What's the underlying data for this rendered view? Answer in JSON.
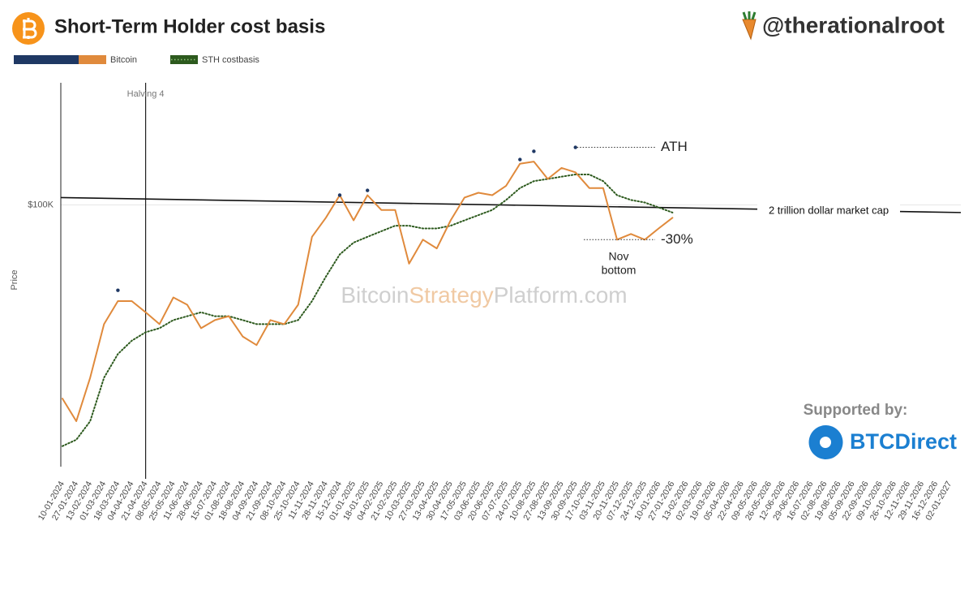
{
  "header": {
    "title": "Short-Term Holder cost basis",
    "handle": "@therationalroot"
  },
  "chart_data": {
    "type": "line",
    "y_label": "Price",
    "x": [
      "10-01-2024",
      "27-01-2024",
      "13-02-2024",
      "01-03-2024",
      "18-03-2024",
      "04-04-2024",
      "21-04-2024",
      "08-05-2024",
      "25-05-2024",
      "11-06-2024",
      "28-06-2024",
      "15-07-2024",
      "01-08-2024",
      "18-08-2024",
      "04-09-2024",
      "21-09-2024",
      "08-10-2024",
      "25-10-2024",
      "11-11-2024",
      "28-11-2024",
      "15-12-2024",
      "01-01-2025",
      "18-01-2025",
      "04-02-2025",
      "21-02-2025",
      "10-03-2025",
      "27-03-2025",
      "13-04-2025",
      "30-04-2025",
      "17-05-2025",
      "03-06-2025",
      "20-06-2025",
      "07-07-2025",
      "24-07-2025",
      "10-08-2025",
      "27-08-2025",
      "13-09-2025",
      "30-09-2025",
      "17-10-2025",
      "03-11-2025",
      "20-11-2025",
      "07-12-2025",
      "24-12-2025",
      "10-01-2026",
      "27-01-2026",
      "13-02-2026",
      "02-03-2026",
      "19-03-2026",
      "05-04-2026",
      "22-04-2026",
      "09-05-2026",
      "26-05-2026",
      "12-06-2026",
      "29-06-2026",
      "16-07-2026",
      "02-08-2026",
      "19-08-2026",
      "05-09-2026",
      "22-09-2026",
      "09-10-2026",
      "26-10-2026",
      "12-11-2026",
      "29-11-2026",
      "16-12-2026",
      "02-01-2027"
    ],
    "series": [
      {
        "name": "ATH's",
        "color": "#1f3864",
        "style": "points",
        "values": [
          null,
          null,
          null,
          null,
          71000,
          null,
          null,
          null,
          null,
          null,
          null,
          null,
          null,
          null,
          null,
          null,
          null,
          null,
          null,
          null,
          104000,
          null,
          106000,
          null,
          null,
          null,
          null,
          null,
          null,
          null,
          null,
          null,
          null,
          120000,
          124000,
          null,
          null,
          126000,
          null,
          null,
          null,
          null,
          null,
          null,
          null,
          null,
          null,
          null,
          null,
          null,
          null,
          null,
          null,
          null,
          null,
          null,
          null,
          null,
          null,
          null,
          null,
          null,
          null,
          null,
          null
        ]
      },
      {
        "name": "Bitcoin",
        "color": "#e08a3c",
        "style": "solid",
        "values": [
          46000,
          42000,
          50000,
          62000,
          68000,
          68000,
          65000,
          62000,
          69000,
          67000,
          61000,
          63000,
          64000,
          59000,
          57000,
          63000,
          62000,
          67000,
          88000,
          95000,
          104000,
          94000,
          104000,
          98000,
          98000,
          79000,
          87000,
          84000,
          94000,
          103000,
          105000,
          104000,
          108000,
          118000,
          119000,
          111000,
          116000,
          114000,
          107000,
          107000,
          87000,
          89000,
          87000,
          91000,
          95000,
          null,
          null,
          null,
          null,
          null,
          null,
          null,
          null,
          null,
          null,
          null,
          null,
          null,
          null,
          null,
          null,
          null,
          null,
          null,
          null
        ]
      },
      {
        "name": "STH costbasis",
        "color": "#2d5a1e",
        "style": "dotted",
        "values": [
          38000,
          39000,
          42000,
          50000,
          55000,
          58000,
          60000,
          61000,
          63000,
          64000,
          65000,
          64000,
          64000,
          63000,
          62000,
          62000,
          62000,
          63000,
          68000,
          75000,
          82000,
          86000,
          88000,
          90000,
          92000,
          92000,
          91000,
          91000,
          92000,
          94000,
          96000,
          98000,
          102000,
          107000,
          110000,
          111000,
          112000,
          113000,
          113000,
          110000,
          104000,
          102000,
          101000,
          99000,
          97000,
          null,
          null,
          null,
          null,
          null,
          null,
          null,
          null,
          null,
          null,
          null,
          null,
          null,
          null,
          null,
          null,
          null,
          null,
          null,
          null
        ]
      }
    ],
    "ylim": [
      35000,
      167000
    ],
    "yticks": [
      {
        "value": 100000,
        "label": "$100K"
      }
    ],
    "log_y": true,
    "grid": true,
    "legend": "top-left",
    "vlines": [
      {
        "x": "21-04-2024",
        "label": "Halving 4"
      }
    ],
    "reference_line": {
      "label": "2 trillion dollar market cap",
      "values": [
        103000,
        97000
      ]
    },
    "annotations": {
      "ath": "ATH",
      "drawdown": "-30%",
      "bottom": "Nov bottom"
    },
    "watermark": [
      "Bitcoin",
      "Strategy",
      "Platform.com"
    ]
  },
  "sponsor": {
    "label": "Supported by:",
    "name": "BTCDirect"
  }
}
